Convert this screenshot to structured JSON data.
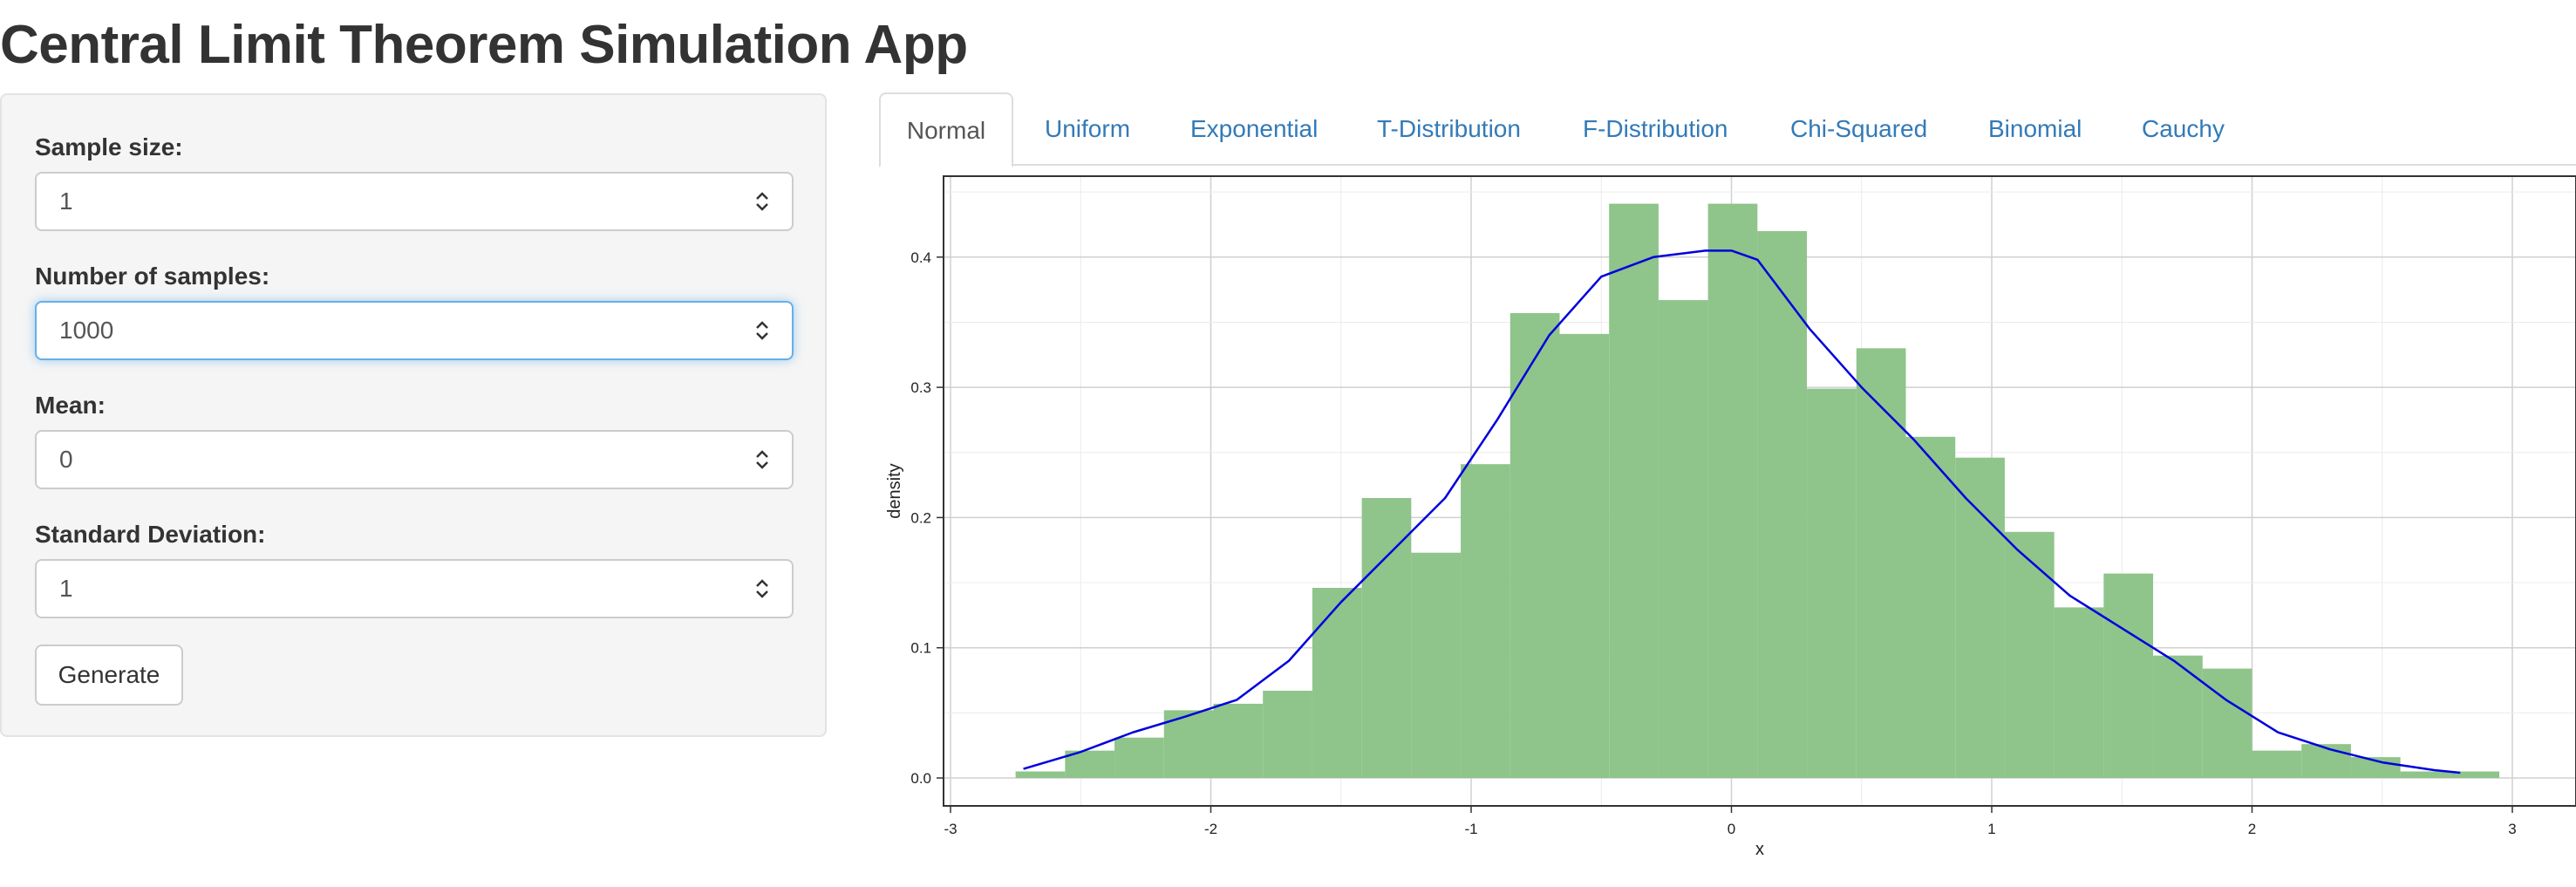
{
  "app": {
    "title": "Central Limit Theorem Simulation App"
  },
  "sidebar": {
    "fields": [
      {
        "label": "Sample size:",
        "value": "1"
      },
      {
        "label": "Number of samples:",
        "value": "1000"
      },
      {
        "label": "Mean:",
        "value": "0"
      },
      {
        "label": "Standard Deviation:",
        "value": "1"
      }
    ],
    "generate_label": "Generate"
  },
  "tabs": [
    {
      "label": "Normal",
      "active": true
    },
    {
      "label": "Uniform",
      "active": false
    },
    {
      "label": "Exponential",
      "active": false
    },
    {
      "label": "T-Distribution",
      "active": false
    },
    {
      "label": "F-Distribution",
      "active": false
    },
    {
      "label": "Chi-Squared",
      "active": false
    },
    {
      "label": "Binomial",
      "active": false
    },
    {
      "label": "Cauchy",
      "active": false
    }
  ],
  "colors": {
    "bar_fill": "#8fc48b",
    "density_line": "#0000dd",
    "active_input_border": "#66afe9",
    "tab_link": "#337ab7"
  },
  "chart_data": {
    "type": "bar",
    "xlabel": "x",
    "ylabel": "density",
    "xlim": [
      -3,
      3
    ],
    "ylim": [
      0,
      0.44
    ],
    "xticks": [
      "-3",
      "-2",
      "-1",
      "0",
      "1",
      "2",
      "3"
    ],
    "yticks": [
      "0.0",
      "0.1",
      "0.2",
      "0.3",
      "0.4"
    ],
    "grid": true,
    "histogram": {
      "bin_width": 0.19,
      "bins": [
        {
          "x0": -2.75,
          "x1": -2.56,
          "density": 0.005
        },
        {
          "x0": -2.56,
          "x1": -2.37,
          "density": 0.021
        },
        {
          "x0": -2.37,
          "x1": -2.18,
          "density": 0.031
        },
        {
          "x0": -2.18,
          "x1": -1.99,
          "density": 0.052
        },
        {
          "x0": -1.99,
          "x1": -1.8,
          "density": 0.057
        },
        {
          "x0": -1.8,
          "x1": -1.61,
          "density": 0.067
        },
        {
          "x0": -1.61,
          "x1": -1.42,
          "density": 0.146
        },
        {
          "x0": -1.42,
          "x1": -1.23,
          "density": 0.215
        },
        {
          "x0": -1.23,
          "x1": -1.04,
          "density": 0.173
        },
        {
          "x0": -1.04,
          "x1": -0.85,
          "density": 0.241
        },
        {
          "x0": -0.85,
          "x1": -0.66,
          "density": 0.357
        },
        {
          "x0": -0.66,
          "x1": -0.47,
          "density": 0.341
        },
        {
          "x0": -0.47,
          "x1": -0.28,
          "density": 0.441
        },
        {
          "x0": -0.28,
          "x1": -0.09,
          "density": 0.367
        },
        {
          "x0": -0.09,
          "x1": 0.1,
          "density": 0.441
        },
        {
          "x0": 0.1,
          "x1": 0.29,
          "density": 0.42
        },
        {
          "x0": 0.29,
          "x1": 0.48,
          "density": 0.299
        },
        {
          "x0": 0.48,
          "x1": 0.67,
          "density": 0.33
        },
        {
          "x0": 0.67,
          "x1": 0.86,
          "density": 0.262
        },
        {
          "x0": 0.86,
          "x1": 1.05,
          "density": 0.246
        },
        {
          "x0": 1.05,
          "x1": 1.24,
          "density": 0.189
        },
        {
          "x0": 1.24,
          "x1": 1.43,
          "density": 0.131
        },
        {
          "x0": 1.43,
          "x1": 1.62,
          "density": 0.157
        },
        {
          "x0": 1.62,
          "x1": 1.81,
          "density": 0.094
        },
        {
          "x0": 1.81,
          "x1": 2.0,
          "density": 0.084
        },
        {
          "x0": 2.0,
          "x1": 2.19,
          "density": 0.021
        },
        {
          "x0": 2.19,
          "x1": 2.38,
          "density": 0.026
        },
        {
          "x0": 2.38,
          "x1": 2.57,
          "density": 0.016
        },
        {
          "x0": 2.57,
          "x1": 2.76,
          "density": 0.005
        },
        {
          "x0": 2.76,
          "x1": 2.95,
          "density": 0.005
        }
      ]
    },
    "density_curve": {
      "x": [
        -2.72,
        -2.5,
        -2.3,
        -2.1,
        -1.9,
        -1.7,
        -1.5,
        -1.3,
        -1.1,
        -0.9,
        -0.7,
        -0.5,
        -0.3,
        -0.1,
        0.0,
        0.1,
        0.3,
        0.5,
        0.7,
        0.9,
        1.1,
        1.3,
        1.5,
        1.7,
        1.9,
        2.1,
        2.3,
        2.5,
        2.7,
        2.8
      ],
      "y": [
        0.007,
        0.02,
        0.035,
        0.047,
        0.06,
        0.09,
        0.135,
        0.175,
        0.215,
        0.275,
        0.34,
        0.385,
        0.4,
        0.405,
        0.405,
        0.398,
        0.345,
        0.3,
        0.26,
        0.215,
        0.175,
        0.14,
        0.115,
        0.09,
        0.06,
        0.035,
        0.022,
        0.012,
        0.006,
        0.004
      ]
    }
  }
}
